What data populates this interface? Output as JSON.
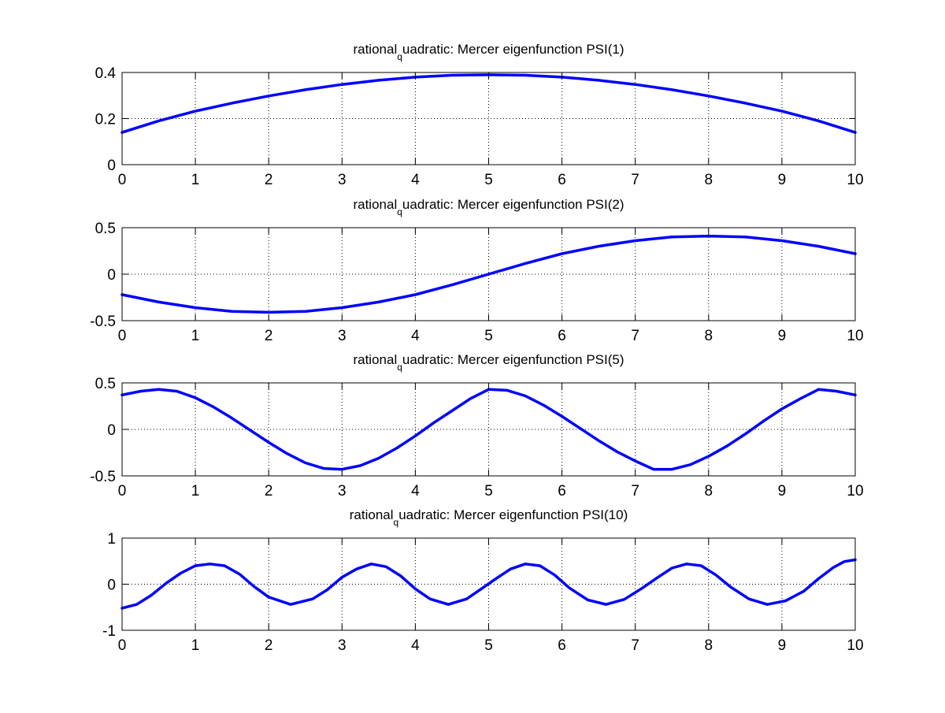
{
  "figure": {
    "background": "#ffffff",
    "series_color": "#0000ff"
  },
  "chart_data": [
    {
      "type": "line",
      "title": "rational_quadratic: Mercer eigenfunction PSI(1)",
      "title_parts": [
        "rational",
        "q",
        "uadratic: Mercer eigenfunction PSI(1)"
      ],
      "xlim": [
        0,
        10
      ],
      "ylim": [
        0,
        0.4
      ],
      "xticks": [
        0,
        1,
        2,
        3,
        4,
        5,
        6,
        7,
        8,
        9,
        10
      ],
      "yticks": [
        0,
        0.2,
        0.4
      ],
      "xtick_labels": [
        "0",
        "1",
        "2",
        "3",
        "4",
        "5",
        "6",
        "7",
        "8",
        "9",
        "10"
      ],
      "ytick_labels": [
        "0",
        "0.2",
        "0.4"
      ],
      "grid": true,
      "series": [
        {
          "color": "#0000ff",
          "x": [
            0,
            0.5,
            1,
            1.5,
            2,
            2.5,
            3,
            3.5,
            4,
            4.5,
            5,
            5.5,
            6,
            6.5,
            7,
            7.5,
            8,
            8.5,
            9,
            9.5,
            10
          ],
          "y": [
            0.14,
            0.19,
            0.232,
            0.267,
            0.298,
            0.325,
            0.348,
            0.366,
            0.38,
            0.388,
            0.39,
            0.388,
            0.38,
            0.366,
            0.348,
            0.325,
            0.298,
            0.267,
            0.232,
            0.19,
            0.14
          ]
        }
      ]
    },
    {
      "type": "line",
      "title": "rational_quadratic: Mercer eigenfunction PSI(2)",
      "title_parts": [
        "rational",
        "q",
        "uadratic: Mercer eigenfunction PSI(2)"
      ],
      "xlim": [
        0,
        10
      ],
      "ylim": [
        -0.5,
        0.5
      ],
      "xticks": [
        0,
        1,
        2,
        3,
        4,
        5,
        6,
        7,
        8,
        9,
        10
      ],
      "yticks": [
        -0.5,
        0,
        0.5
      ],
      "xtick_labels": [
        "0",
        "1",
        "2",
        "3",
        "4",
        "5",
        "6",
        "7",
        "8",
        "9",
        "10"
      ],
      "ytick_labels": [
        "-0.5",
        "0",
        "0.5"
      ],
      "grid": true,
      "series": [
        {
          "color": "#0000ff",
          "x": [
            0,
            0.5,
            1,
            1.5,
            2,
            2.5,
            3,
            3.5,
            4,
            4.5,
            5,
            5.5,
            6,
            6.5,
            7,
            7.5,
            8,
            8.5,
            9,
            9.5,
            10
          ],
          "y": [
            -0.22,
            -0.3,
            -0.36,
            -0.4,
            -0.41,
            -0.4,
            -0.36,
            -0.3,
            -0.22,
            -0.115,
            0,
            0.115,
            0.22,
            0.3,
            0.36,
            0.4,
            0.41,
            0.4,
            0.36,
            0.3,
            0.22
          ]
        }
      ]
    },
    {
      "type": "line",
      "title": "rational_quadratic: Mercer eigenfunction PSI(5)",
      "title_parts": [
        "rational",
        "q",
        "uadratic: Mercer eigenfunction PSI(5)"
      ],
      "xlim": [
        0,
        10
      ],
      "ylim": [
        -0.5,
        0.5
      ],
      "xticks": [
        0,
        1,
        2,
        3,
        4,
        5,
        6,
        7,
        8,
        9,
        10
      ],
      "yticks": [
        -0.5,
        0,
        0.5
      ],
      "xtick_labels": [
        "0",
        "1",
        "2",
        "3",
        "4",
        "5",
        "6",
        "7",
        "8",
        "9",
        "10"
      ],
      "ytick_labels": [
        "-0.5",
        "0",
        "0.5"
      ],
      "grid": true,
      "series": [
        {
          "color": "#0000ff",
          "x": [
            0,
            0.25,
            0.5,
            0.75,
            1,
            1.25,
            1.5,
            1.75,
            2,
            2.25,
            2.5,
            2.75,
            3,
            3.25,
            3.5,
            3.75,
            4,
            4.25,
            4.5,
            4.75,
            5,
            5.25,
            5.5,
            5.75,
            6,
            6.25,
            6.5,
            6.75,
            7,
            7.25,
            7.5,
            7.75,
            8,
            8.25,
            8.5,
            8.75,
            9,
            9.25,
            9.5,
            9.75,
            10
          ],
          "y": [
            0.37,
            0.41,
            0.43,
            0.41,
            0.34,
            0.24,
            0.12,
            -0.01,
            -0.14,
            -0.26,
            -0.36,
            -0.42,
            -0.43,
            -0.39,
            -0.31,
            -0.2,
            -0.07,
            0.07,
            0.2,
            0.33,
            0.43,
            0.42,
            0.36,
            0.26,
            0.14,
            0.01,
            -0.12,
            -0.24,
            -0.34,
            -0.43,
            -0.43,
            -0.38,
            -0.29,
            -0.18,
            -0.05,
            0.09,
            0.22,
            0.33,
            0.43,
            0.41,
            0.37
          ]
        }
      ]
    },
    {
      "type": "line",
      "title": "rational_quadratic: Mercer eigenfunction PSI(10)",
      "title_parts": [
        "rational",
        "q",
        "uadratic: Mercer eigenfunction PSI(10)"
      ],
      "xlim": [
        0,
        10
      ],
      "ylim": [
        -1,
        1
      ],
      "xticks": [
        0,
        1,
        2,
        3,
        4,
        5,
        6,
        7,
        8,
        9,
        10
      ],
      "yticks": [
        -1,
        0,
        1
      ],
      "xtick_labels": [
        "0",
        "1",
        "2",
        "3",
        "4",
        "5",
        "6",
        "7",
        "8",
        "9",
        "10"
      ],
      "ytick_labels": [
        "-1",
        "0",
        "1"
      ],
      "grid": true,
      "series": [
        {
          "color": "#0000ff",
          "x": [
            0,
            0.2,
            0.4,
            0.6,
            0.8,
            1.0,
            1.2,
            1.4,
            1.6,
            1.8,
            2.0,
            2.3,
            2.6,
            2.8,
            3.0,
            3.2,
            3.4,
            3.6,
            3.8,
            4.0,
            4.2,
            4.45,
            4.7,
            4.9,
            5.1,
            5.3,
            5.5,
            5.7,
            5.9,
            6.1,
            6.35,
            6.6,
            6.85,
            7.1,
            7.3,
            7.5,
            7.7,
            7.9,
            8.1,
            8.3,
            8.55,
            8.8,
            9.05,
            9.3,
            9.5,
            9.7,
            9.85,
            10.0
          ],
          "y": [
            -0.52,
            -0.44,
            -0.24,
            0.02,
            0.24,
            0.4,
            0.44,
            0.4,
            0.22,
            -0.05,
            -0.28,
            -0.44,
            -0.32,
            -0.12,
            0.15,
            0.33,
            0.44,
            0.38,
            0.18,
            -0.1,
            -0.32,
            -0.44,
            -0.32,
            -0.1,
            0.12,
            0.33,
            0.44,
            0.4,
            0.2,
            -0.08,
            -0.34,
            -0.44,
            -0.33,
            -0.08,
            0.14,
            0.35,
            0.44,
            0.4,
            0.2,
            -0.06,
            -0.32,
            -0.44,
            -0.36,
            -0.15,
            0.12,
            0.36,
            0.49,
            0.53
          ]
        }
      ]
    }
  ]
}
